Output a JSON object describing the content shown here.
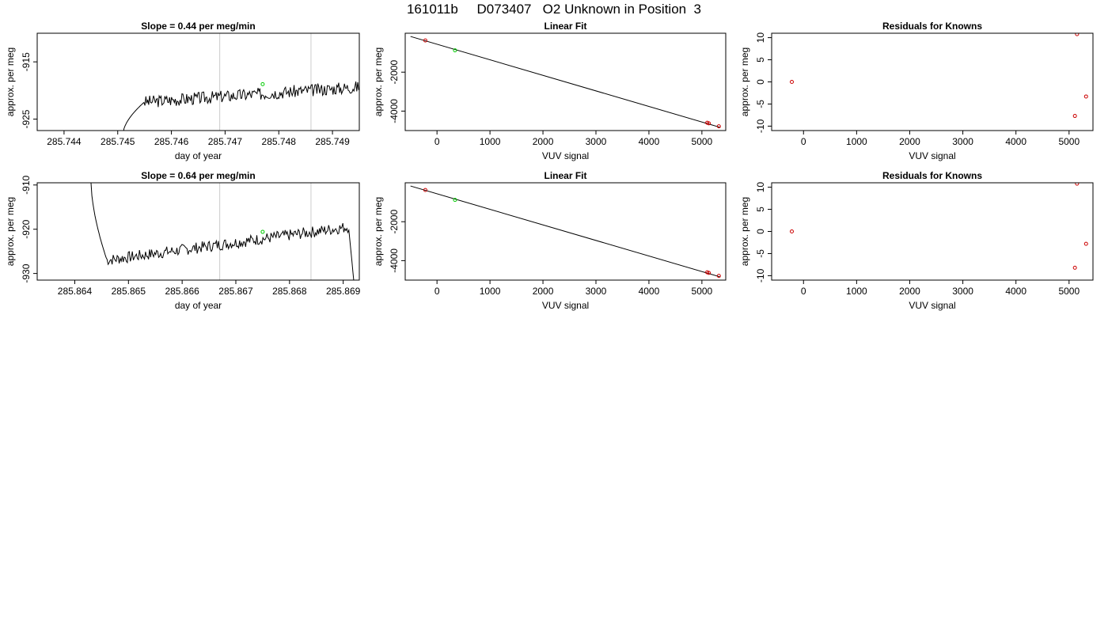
{
  "page_title": "161011b     D073407   O2 Unknown in Position  3",
  "colors": {
    "axis": "#000000",
    "trace": "#000000",
    "vline": "#cccccc",
    "known_point": "#cc0000",
    "unknown_point": "#00cc00"
  },
  "chart_data": [
    {
      "type": "line",
      "title": "Slope =  0.44  per meg/min",
      "xlabel": "day of year",
      "ylabel": "approx. per meg",
      "xlim": [
        285.7435,
        285.7495
      ],
      "ylim": [
        -927.0,
        -910.0
      ],
      "x_ticks": [
        "285.744",
        "285.745",
        "285.746",
        "285.747",
        "285.748",
        "285.749"
      ],
      "x_tick_values": [
        285.744,
        285.745,
        285.746,
        285.747,
        285.748,
        285.749
      ],
      "y_ticks": [
        "-915",
        "-925"
      ],
      "y_tick_values": [
        -915,
        -925
      ],
      "vlines": [
        285.7469,
        285.7486
      ],
      "unknown_point": {
        "x": 285.7477,
        "y": -918.9
      },
      "trace_start_x": 285.7451,
      "trace_start_y": -927.5,
      "trace_end_x": 285.7497,
      "trace_end_y": -909.5,
      "trace_baseline_start": -922.0,
      "trace_baseline_end": -919.3,
      "trace_rise_end_x": 285.7455,
      "noise_amp": 1.1,
      "final_rise_start_x": 285.7496,
      "seed": 3
    },
    {
      "type": "scatter",
      "title": "Linear Fit",
      "xlabel": "VUV signal",
      "ylabel": "approx. per meg",
      "xlim": [
        -600,
        5450
      ],
      "ylim": [
        -5000,
        0
      ],
      "x_ticks": [
        "0",
        "1000",
        "2000",
        "3000",
        "4000",
        "5000"
      ],
      "x_tick_values": [
        0,
        1000,
        2000,
        3000,
        4000,
        5000
      ],
      "y_ticks": [
        "-2000",
        "-4000"
      ],
      "y_tick_values": [
        -2000,
        -4000
      ],
      "fit_line": {
        "x": [
          -500,
          5350
        ],
        "y": [
          -165,
          -4840
        ]
      },
      "known_points": {
        "x": [
          -220,
          5100,
          5130,
          5320
        ],
        "y": [
          -370,
          -4600,
          -4630,
          -4780
        ]
      },
      "unknown_point": {
        "x": 340,
        "y": -880
      }
    },
    {
      "type": "scatter",
      "title": "Residuals for Knowns",
      "xlabel": "VUV signal",
      "ylabel": "approx. per meg",
      "xlim": [
        -600,
        5450
      ],
      "ylim": [
        -11,
        11
      ],
      "x_ticks": [
        "0",
        "1000",
        "2000",
        "3000",
        "4000",
        "5000"
      ],
      "x_tick_values": [
        0,
        1000,
        2000,
        3000,
        4000,
        5000
      ],
      "y_ticks": [
        "10",
        "5",
        "0",
        "-5",
        "-10"
      ],
      "y_tick_values": [
        10,
        5,
        0,
        -5,
        -10
      ],
      "known_points": {
        "x": [
          -220,
          5150,
          5320,
          5110
        ],
        "y": [
          0,
          10.8,
          -3.3,
          -7.7
        ]
      }
    },
    {
      "type": "line",
      "title": "Slope =  0.64  per meg/min",
      "xlabel": "day of year",
      "ylabel": "approx. per meg",
      "xlim": [
        285.8633,
        285.8693
      ],
      "ylim": [
        -931.5,
        -909.5
      ],
      "x_ticks": [
        "285.864",
        "285.865",
        "285.866",
        "285.867",
        "285.868",
        "285.869"
      ],
      "x_tick_values": [
        285.864,
        285.865,
        285.866,
        285.867,
        285.868,
        285.869
      ],
      "y_ticks": [
        "-910",
        "-920",
        "-930"
      ],
      "y_tick_values": [
        -910,
        -920,
        -930
      ],
      "vlines": [
        285.8667,
        285.8684
      ],
      "unknown_point": {
        "x": 285.8675,
        "y": -920.6
      },
      "trace_start_x": 285.8643,
      "trace_start_y": -909.0,
      "trace_end_x": 285.8692,
      "trace_end_y": -932.0,
      "trace_baseline_start": -927.0,
      "trace_baseline_end": -919.5,
      "trace_rise_end_x": 285.8646,
      "noise_amp": 1.3,
      "final_rise_start_x": 285.8691,
      "seed": 7
    },
    {
      "type": "scatter",
      "title": "Linear Fit",
      "xlabel": "VUV signal",
      "ylabel": "approx. per meg",
      "xlim": [
        -600,
        5450
      ],
      "ylim": [
        -5000,
        0
      ],
      "x_ticks": [
        "0",
        "1000",
        "2000",
        "3000",
        "4000",
        "5000"
      ],
      "x_tick_values": [
        0,
        1000,
        2000,
        3000,
        4000,
        5000
      ],
      "y_ticks": [
        "-2000",
        "-4000"
      ],
      "y_tick_values": [
        -2000,
        -4000
      ],
      "fit_line": {
        "x": [
          -500,
          5350
        ],
        "y": [
          -165,
          -4840
        ]
      },
      "known_points": {
        "x": [
          -220,
          5100,
          5130,
          5320
        ],
        "y": [
          -370,
          -4600,
          -4630,
          -4780
        ]
      },
      "unknown_point": {
        "x": 340,
        "y": -880
      }
    },
    {
      "type": "scatter",
      "title": "Residuals for Knowns",
      "xlabel": "VUV signal",
      "ylabel": "approx. per meg",
      "xlim": [
        -600,
        5450
      ],
      "ylim": [
        -11,
        11
      ],
      "x_ticks": [
        "0",
        "1000",
        "2000",
        "3000",
        "4000",
        "5000"
      ],
      "x_tick_values": [
        0,
        1000,
        2000,
        3000,
        4000,
        5000
      ],
      "y_ticks": [
        "10",
        "5",
        "0",
        "-5",
        "-10"
      ],
      "y_tick_values": [
        10,
        5,
        0,
        -5,
        -10
      ],
      "known_points": {
        "x": [
          -220,
          5150,
          5320,
          5110
        ],
        "y": [
          0,
          10.8,
          -2.8,
          -8.2
        ]
      }
    }
  ]
}
